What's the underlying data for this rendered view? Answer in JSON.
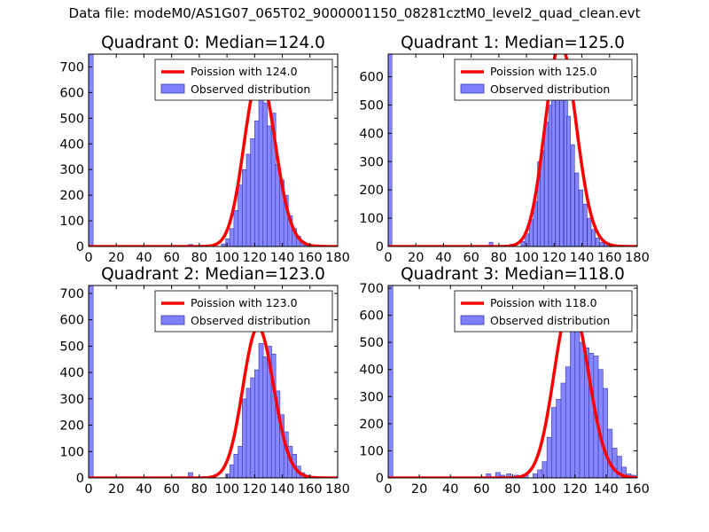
{
  "figure_title": "Data file: modeM0/AS1G07_065T02_9000001150_08281cztM0_level2_quad_clean.evt",
  "colors": {
    "bar_fill": "#8080ff",
    "bar_edge": "#3a3aaa",
    "curve": "#ff0000",
    "axis": "#000000"
  },
  "chart_data": [
    {
      "type": "bar",
      "title": "Quadrant 0: Median=124.0",
      "median": 124.0,
      "xlim": [
        0,
        180
      ],
      "ylim": [
        0,
        750
      ],
      "xticks": [
        0,
        20,
        40,
        60,
        80,
        100,
        120,
        140,
        160,
        180
      ],
      "yticks": [
        0,
        100,
        200,
        300,
        400,
        500,
        600,
        700
      ],
      "bin_width": 3.3,
      "bins": [
        [
          0,
          750
        ],
        [
          72,
          8
        ],
        [
          96,
          10
        ],
        [
          99,
          30
        ],
        [
          102,
          70
        ],
        [
          105,
          140
        ],
        [
          108,
          240
        ],
        [
          111,
          300
        ],
        [
          114,
          360
        ],
        [
          117,
          420
        ],
        [
          120,
          490
        ],
        [
          123,
          600
        ],
        [
          126,
          560
        ],
        [
          129,
          470
        ],
        [
          132,
          520
        ],
        [
          135,
          320
        ],
        [
          138,
          260
        ],
        [
          141,
          200
        ],
        [
          144,
          120
        ],
        [
          147,
          70
        ],
        [
          150,
          40
        ],
        [
          153,
          20
        ],
        [
          156,
          10
        ],
        [
          159,
          5
        ]
      ],
      "legend": [
        "Poission with 124.0",
        "Observed distribution"
      ]
    },
    {
      "type": "bar",
      "title": "Quadrant 1: Median=125.0",
      "median": 125.0,
      "xlim": [
        0,
        180
      ],
      "ylim": [
        0,
        680
      ],
      "xticks": [
        0,
        20,
        40,
        60,
        80,
        100,
        120,
        140,
        160,
        180
      ],
      "yticks": [
        0,
        100,
        200,
        300,
        400,
        500,
        600
      ],
      "bin_width": 2.7,
      "bins": [
        [
          0,
          680
        ],
        [
          73,
          15
        ],
        [
          88,
          8
        ],
        [
          96,
          18
        ],
        [
          99,
          45
        ],
        [
          102,
          95
        ],
        [
          105,
          160
        ],
        [
          108,
          300
        ],
        [
          110,
          340
        ],
        [
          113,
          440
        ],
        [
          116,
          500
        ],
        [
          118,
          640
        ],
        [
          121,
          570
        ],
        [
          124,
          520
        ],
        [
          127,
          560
        ],
        [
          129,
          460
        ],
        [
          132,
          360
        ],
        [
          135,
          260
        ],
        [
          138,
          200
        ],
        [
          141,
          150
        ],
        [
          144,
          100
        ],
        [
          147,
          60
        ],
        [
          150,
          30
        ],
        [
          153,
          15
        ],
        [
          156,
          10
        ]
      ],
      "legend": [
        "Poission with 125.0",
        "Observed distribution"
      ]
    },
    {
      "type": "bar",
      "title": "Quadrant 2: Median=123.0",
      "median": 123.0,
      "xlim": [
        0,
        180
      ],
      "ylim": [
        0,
        730
      ],
      "xticks": [
        0,
        20,
        40,
        60,
        80,
        100,
        120,
        140,
        160,
        180
      ],
      "yticks": [
        0,
        100,
        200,
        300,
        400,
        500,
        600,
        700
      ],
      "bin_width": 3.3,
      "bins": [
        [
          0,
          730
        ],
        [
          72,
          20
        ],
        [
          99,
          15
        ],
        [
          102,
          50
        ],
        [
          105,
          90
        ],
        [
          108,
          120
        ],
        [
          111,
          300
        ],
        [
          114,
          340
        ],
        [
          117,
          380
        ],
        [
          120,
          410
        ],
        [
          123,
          510
        ],
        [
          126,
          460
        ],
        [
          129,
          500
        ],
        [
          132,
          470
        ],
        [
          135,
          330
        ],
        [
          138,
          240
        ],
        [
          141,
          175
        ],
        [
          144,
          120
        ],
        [
          147,
          90
        ],
        [
          150,
          45
        ],
        [
          153,
          20
        ],
        [
          156,
          10
        ],
        [
          159,
          5
        ]
      ],
      "legend": [
        "Poission with 123.0",
        "Observed distribution"
      ]
    },
    {
      "type": "bar",
      "title": "Quadrant 3: Median=118.0",
      "median": 118.0,
      "xlim": [
        0,
        160
      ],
      "ylim": [
        0,
        710
      ],
      "xticks": [
        0,
        20,
        40,
        60,
        80,
        100,
        120,
        140,
        160
      ],
      "yticks": [
        0,
        100,
        200,
        300,
        400,
        500,
        600,
        700
      ],
      "bin_width": 3.0,
      "bins": [
        [
          0,
          710
        ],
        [
          63,
          15
        ],
        [
          69,
          20
        ],
        [
          72,
          10
        ],
        [
          76,
          15
        ],
        [
          81,
          10
        ],
        [
          87,
          10
        ],
        [
          93,
          15
        ],
        [
          96,
          30
        ],
        [
          99,
          60
        ],
        [
          102,
          150
        ],
        [
          105,
          260
        ],
        [
          108,
          290
        ],
        [
          111,
          350
        ],
        [
          114,
          410
        ],
        [
          117,
          580
        ],
        [
          120,
          560
        ],
        [
          123,
          500
        ],
        [
          126,
          480
        ],
        [
          129,
          460
        ],
        [
          132,
          450
        ],
        [
          135,
          400
        ],
        [
          138,
          330
        ],
        [
          141,
          180
        ],
        [
          144,
          110
        ],
        [
          147,
          80
        ],
        [
          150,
          40
        ],
        [
          153,
          15
        ],
        [
          156,
          10
        ]
      ],
      "legend": [
        "Poission with 118.0",
        "Observed distribution"
      ]
    }
  ]
}
